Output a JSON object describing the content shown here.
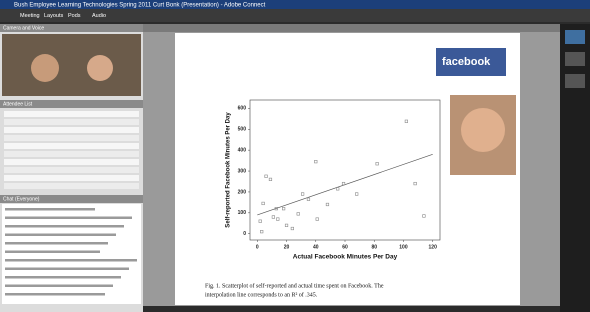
{
  "window": {
    "title": "Bush Employee Learning Technologies Spring 2011 Curt Bonk (Presentation) - Adobe Connect"
  },
  "menu": [
    "Meeting",
    "Layouts",
    "Pods",
    "Audio"
  ],
  "panels": {
    "video": "Camera and Voice",
    "attendees": "Attendee List",
    "chat": "Chat (Everyone)"
  },
  "slide": {
    "logo": "facebook",
    "caption": [
      "Fig. 1. Scatterplot of self-reported and actual time spent on Facebook. The",
      "interpolation line corresponds to an R² of .345."
    ],
    "chart": {
      "type": "scatter",
      "x_label": "Actual Facebook Minutes Per Day",
      "y_label": "Self-reported Facebook Minutes Per Day",
      "xlim": [
        -5,
        125
      ],
      "ylim": [
        -30,
        640
      ],
      "xticks": [
        0,
        20,
        40,
        60,
        80,
        100,
        120
      ],
      "yticks": [
        0,
        100,
        200,
        300,
        400,
        500,
        600
      ],
      "x": [
        102,
        82,
        59,
        40,
        6,
        9,
        4,
        2,
        3,
        11,
        14,
        18,
        20,
        24,
        28,
        31,
        35,
        41,
        48,
        55,
        68,
        108,
        114,
        13
      ],
      "y": [
        538,
        335,
        240,
        345,
        275,
        260,
        145,
        60,
        10,
        80,
        70,
        120,
        40,
        25,
        95,
        190,
        165,
        70,
        140,
        215,
        190,
        240,
        85,
        120
      ],
      "trend_line": {
        "x": [
          0,
          120
        ],
        "y": [
          90,
          380
        ]
      },
      "color": "#888888"
    }
  }
}
